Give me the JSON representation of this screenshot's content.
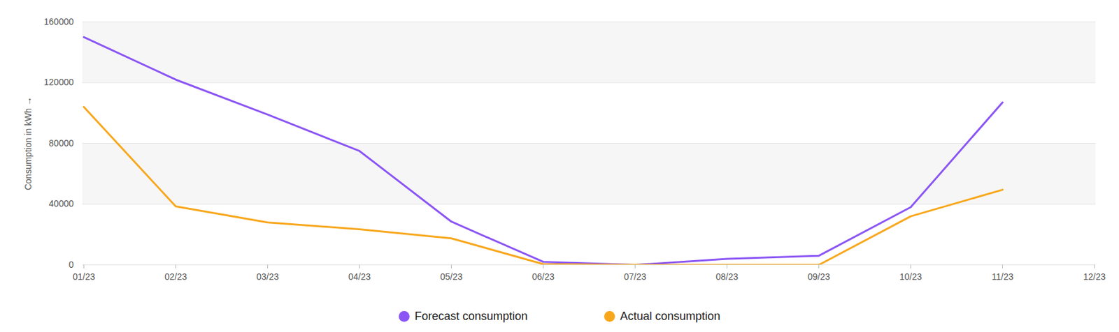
{
  "chart_data": {
    "type": "line",
    "y_label": "Consumption in kWh",
    "categories": [
      "01/23",
      "02/23",
      "03/23",
      "04/23",
      "05/23",
      "06/23",
      "07/23",
      "08/23",
      "09/23",
      "10/23",
      "11/23",
      "12/23"
    ],
    "series": [
      {
        "name": "Forecast consumption",
        "color": "#8b55f5",
        "values": [
          150000,
          122000,
          99000,
          75000,
          28500,
          2000,
          0,
          4000,
          6000,
          38000,
          107000,
          null
        ]
      },
      {
        "name": "Actual consumption",
        "color": "#f8a71c",
        "values": [
          104000,
          38500,
          28000,
          23500,
          17500,
          500,
          0,
          0,
          0,
          32000,
          49500,
          null
        ]
      }
    ],
    "ylim": [
      0,
      160000
    ],
    "yticks": [
      0,
      40000,
      80000,
      120000,
      160000
    ],
    "grid": true,
    "legend": "bottom"
  }
}
